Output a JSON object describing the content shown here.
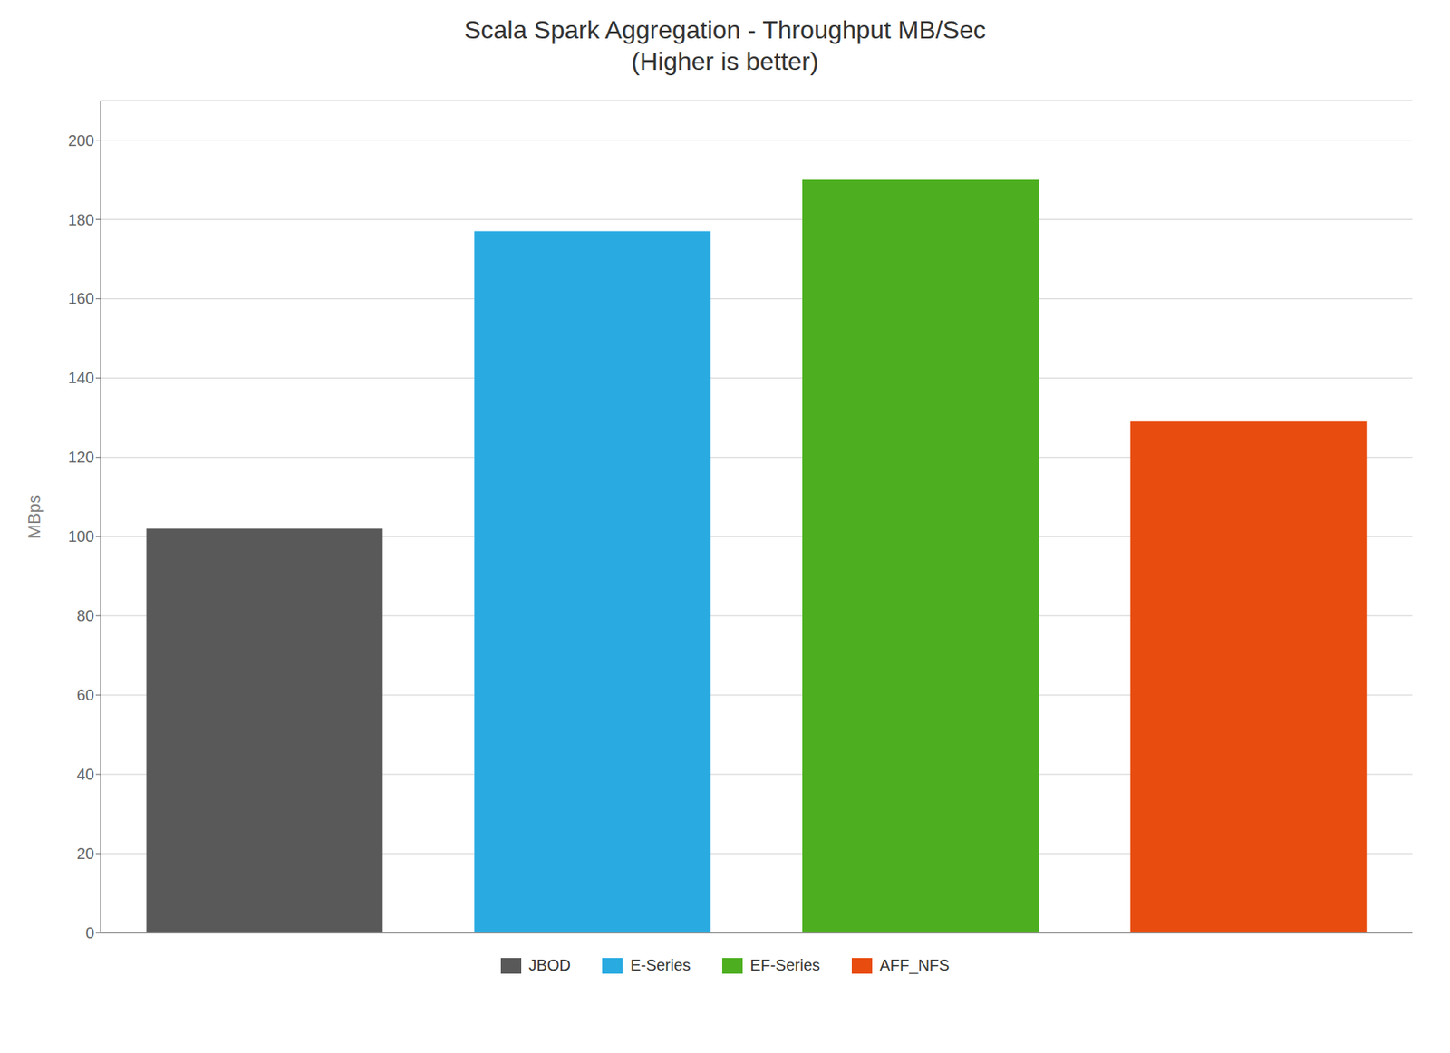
{
  "chart_data": {
    "type": "bar",
    "title": "Scala Spark Aggregation - Throughput MB/Sec\n(Higher is better)",
    "ylabel": "MBps",
    "categories": [
      "JBOD",
      "E-Series",
      "EF-Series",
      "AFF_NFS"
    ],
    "values": [
      102,
      177,
      190,
      129
    ],
    "colors": [
      "#595959",
      "#29ABE2",
      "#4DAF20",
      "#E84C0E"
    ],
    "ylim": [
      0,
      210
    ],
    "yticks": [
      0,
      20,
      40,
      60,
      80,
      100,
      120,
      140,
      160,
      180,
      200
    ],
    "grid": true,
    "legend": "bottom",
    "tick_labels": "y"
  }
}
